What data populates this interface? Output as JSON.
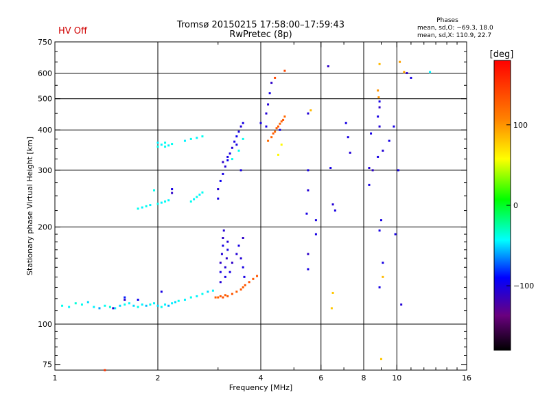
{
  "status": {
    "text": "HV Off",
    "color": "#d00000"
  },
  "title": {
    "line1": "Tromsø 20150215 17:58:00–17:59:43",
    "line2": "RwPretec (8p)"
  },
  "phase_stats": {
    "title": "Phases",
    "o_line": "mean, sd,O: −69.3, 18.0",
    "x_line": "mean, sd,X: 110.9, 22.7"
  },
  "colorbar": {
    "label": "[deg]",
    "min": -180,
    "max": 180,
    "ticks": [
      {
        "value": 100,
        "label": "100"
      },
      {
        "value": 0,
        "label": "0"
      },
      {
        "value": -100,
        "label": "−100"
      }
    ]
  },
  "chart_data": {
    "type": "scatter",
    "title": "Tromsø 20150215 17:58:00–17:59:43",
    "subtitle": "RwPretec (8p)",
    "xlabel": "Frequency [MHz]",
    "ylabel": "Stationary phase Virtual Height [km]",
    "x_scale": "log",
    "y_scale": "log",
    "xlim": [
      1,
      16
    ],
    "ylim": [
      72,
      750
    ],
    "x_ticks": [
      {
        "value": 1,
        "label": "1"
      },
      {
        "value": 2,
        "label": "2"
      },
      {
        "value": 4,
        "label": "4"
      },
      {
        "value": 6,
        "label": "6"
      },
      {
        "value": 8,
        "label": "8"
      },
      {
        "value": 10,
        "label": "10"
      },
      {
        "value": 16,
        "label": "16"
      }
    ],
    "y_ticks": [
      {
        "value": 75,
        "label": "75"
      },
      {
        "value": 100,
        "label": "100"
      },
      {
        "value": 200,
        "label": "200"
      },
      {
        "value": 300,
        "label": "300"
      },
      {
        "value": 400,
        "label": "400"
      },
      {
        "value": 500,
        "label": "500"
      },
      {
        "value": 600,
        "label": "600"
      },
      {
        "value": 750,
        "label": "750"
      }
    ],
    "grid": true,
    "grid_x": [
      2,
      4,
      6,
      8,
      10
    ],
    "grid_y": [
      100,
      200,
      300,
      400,
      500,
      600
    ],
    "color_scale": "phase [deg], -180 to 180",
    "points": [
      [
        1.05,
        114,
        -40
      ],
      [
        1.1,
        113,
        -45
      ],
      [
        1.15,
        116,
        -35
      ],
      [
        1.2,
        115,
        -40
      ],
      [
        1.25,
        117,
        -50
      ],
      [
        1.3,
        113,
        -45
      ],
      [
        1.35,
        112,
        -60
      ],
      [
        1.4,
        114,
        -40
      ],
      [
        1.45,
        113,
        -35
      ],
      [
        1.5,
        112,
        -45
      ],
      [
        1.55,
        114,
        -50
      ],
      [
        1.6,
        115,
        -40
      ],
      [
        1.65,
        116,
        -45
      ],
      [
        1.7,
        114,
        -50
      ],
      [
        1.75,
        113,
        -40
      ],
      [
        1.8,
        115,
        -45
      ],
      [
        1.85,
        114,
        -55
      ],
      [
        1.9,
        115,
        -40
      ],
      [
        1.95,
        116,
        -45
      ],
      [
        2.0,
        114,
        -50
      ],
      [
        2.05,
        113,
        -40
      ],
      [
        2.1,
        115,
        -45
      ],
      [
        2.15,
        114,
        -60
      ],
      [
        2.2,
        116,
        -45
      ],
      [
        2.25,
        117,
        -50
      ],
      [
        2.3,
        118,
        -40
      ],
      [
        2.4,
        119,
        -45
      ],
      [
        2.5,
        121,
        -40
      ],
      [
        2.6,
        122,
        -45
      ],
      [
        2.7,
        124,
        -40
      ],
      [
        2.8,
        126,
        -50
      ],
      [
        2.9,
        127,
        -45
      ],
      [
        1.48,
        112,
        -110
      ],
      [
        1.6,
        119,
        -110
      ],
      [
        1.75,
        119,
        -95
      ],
      [
        1.4,
        72,
        150
      ],
      [
        1.6,
        121,
        -85
      ],
      [
        2.05,
        126,
        -100
      ],
      [
        2.95,
        121,
        130
      ],
      [
        3.0,
        121,
        125
      ],
      [
        3.05,
        122,
        130
      ],
      [
        3.1,
        121,
        135
      ],
      [
        3.15,
        123,
        128
      ],
      [
        3.2,
        122,
        130
      ],
      [
        3.3,
        124,
        132
      ],
      [
        3.4,
        126,
        128
      ],
      [
        3.5,
        128,
        130
      ],
      [
        3.55,
        130,
        128
      ],
      [
        3.6,
        132,
        132
      ],
      [
        3.7,
        135,
        135
      ],
      [
        3.8,
        138,
        130
      ],
      [
        3.9,
        141,
        132
      ],
      [
        3.05,
        135,
        -105
      ],
      [
        3.05,
        145,
        -100
      ],
      [
        3.05,
        155,
        -110
      ],
      [
        3.08,
        165,
        -105
      ],
      [
        3.1,
        175,
        -100
      ],
      [
        3.1,
        185,
        -110
      ],
      [
        3.12,
        195,
        -105
      ],
      [
        3.15,
        140,
        -100
      ],
      [
        3.15,
        150,
        -105
      ],
      [
        3.18,
        160,
        -110
      ],
      [
        3.2,
        170,
        -100
      ],
      [
        3.2,
        180,
        -105
      ],
      [
        3.25,
        145,
        -100
      ],
      [
        3.3,
        155,
        -110
      ],
      [
        3.4,
        165,
        -105
      ],
      [
        3.45,
        175,
        -100
      ],
      [
        3.5,
        160,
        -105
      ],
      [
        3.55,
        150,
        -100
      ],
      [
        3.55,
        185,
        -110
      ],
      [
        3.58,
        140,
        -100
      ],
      [
        3.0,
        245,
        -100
      ],
      [
        3.0,
        262,
        -105
      ],
      [
        3.05,
        278,
        -95
      ],
      [
        3.1,
        292,
        -100
      ],
      [
        3.15,
        308,
        -105
      ],
      [
        3.2,
        322,
        -95
      ],
      [
        3.25,
        338,
        -100
      ],
      [
        3.3,
        352,
        -105
      ],
      [
        3.35,
        368,
        -100
      ],
      [
        3.4,
        382,
        -95
      ],
      [
        3.45,
        395,
        -100
      ],
      [
        3.5,
        410,
        -105
      ],
      [
        3.3,
        325,
        -40
      ],
      [
        3.45,
        345,
        -40
      ],
      [
        3.55,
        375,
        -40
      ],
      [
        3.2,
        330,
        -100
      ],
      [
        3.1,
        318,
        -110
      ],
      [
        3.4,
        360,
        -100
      ],
      [
        3.5,
        300,
        -100
      ],
      [
        3.55,
        420,
        -100
      ],
      [
        2.0,
        355,
        -40
      ],
      [
        2.05,
        360,
        -45
      ],
      [
        2.1,
        365,
        -40
      ],
      [
        2.15,
        358,
        -45
      ],
      [
        2.2,
        362,
        -40
      ],
      [
        2.4,
        370,
        -45
      ],
      [
        2.5,
        375,
        -40
      ],
      [
        2.6,
        378,
        -45
      ],
      [
        2.7,
        382,
        -40
      ],
      [
        2.0,
        365,
        -45
      ],
      [
        2.1,
        355,
        -40
      ],
      [
        1.75,
        228,
        -40
      ],
      [
        1.8,
        230,
        -45
      ],
      [
        1.85,
        232,
        -40
      ],
      [
        1.9,
        234,
        -45
      ],
      [
        2.0,
        236,
        -40
      ],
      [
        2.05,
        238,
        -45
      ],
      [
        2.1,
        240,
        -40
      ],
      [
        2.15,
        242,
        -45
      ],
      [
        2.5,
        240,
        -40
      ],
      [
        2.55,
        244,
        -45
      ],
      [
        2.6,
        248,
        -40
      ],
      [
        2.65,
        252,
        -45
      ],
      [
        2.7,
        256,
        -40
      ],
      [
        2.2,
        255,
        -110
      ],
      [
        2.2,
        262,
        -100
      ],
      [
        1.95,
        260,
        -40
      ],
      [
        4.2,
        370,
        120
      ],
      [
        4.3,
        380,
        125
      ],
      [
        4.35,
        390,
        130
      ],
      [
        4.4,
        395,
        122
      ],
      [
        4.45,
        405,
        128
      ],
      [
        4.5,
        410,
        130
      ],
      [
        4.55,
        418,
        125
      ],
      [
        4.6,
        425,
        128
      ],
      [
        4.65,
        430,
        130
      ],
      [
        4.7,
        440,
        122
      ],
      [
        4.55,
        400,
        -100
      ],
      [
        4.5,
        335,
        60
      ],
      [
        4.6,
        360,
        60
      ],
      [
        4.4,
        580,
        140
      ],
      [
        4.7,
        610,
        140
      ],
      [
        4.15,
        410,
        -100
      ],
      [
        4.2,
        480,
        -105
      ],
      [
        4.25,
        520,
        -100
      ],
      [
        4.3,
        560,
        -110
      ],
      [
        4.0,
        420,
        -100
      ],
      [
        4.15,
        450,
        -105
      ],
      [
        5.5,
        260,
        -105
      ],
      [
        5.5,
        300,
        -100
      ],
      [
        5.5,
        450,
        -105
      ],
      [
        5.45,
        220,
        -100
      ],
      [
        5.5,
        165,
        -110
      ],
      [
        5.5,
        148,
        -100
      ],
      [
        5.6,
        460,
        85
      ],
      [
        5.8,
        210,
        -100
      ],
      [
        5.8,
        190,
        -100
      ],
      [
        6.3,
        630,
        -110
      ],
      [
        6.4,
        305,
        -100
      ],
      [
        6.5,
        235,
        -105
      ],
      [
        6.5,
        125,
        80
      ],
      [
        6.45,
        112,
        80
      ],
      [
        6.6,
        225,
        -100
      ],
      [
        7.2,
        380,
        -100
      ],
      [
        7.3,
        340,
        -105
      ],
      [
        7.1,
        420,
        -100
      ],
      [
        8.3,
        305,
        -105
      ],
      [
        8.4,
        390,
        -100
      ],
      [
        8.5,
        300,
        -110
      ],
      [
        8.8,
        330,
        -100
      ],
      [
        8.9,
        410,
        -105
      ],
      [
        8.8,
        440,
        -100
      ],
      [
        8.9,
        470,
        -110
      ],
      [
        8.9,
        640,
        85
      ],
      [
        9.0,
        210,
        -100
      ],
      [
        8.9,
        195,
        -100
      ],
      [
        9.1,
        155,
        -100
      ],
      [
        9.1,
        140,
        85
      ],
      [
        8.8,
        530,
        100
      ],
      [
        8.85,
        505,
        100
      ],
      [
        8.9,
        490,
        -100
      ],
      [
        8.9,
        130,
        -100
      ],
      [
        9.1,
        345,
        -105
      ],
      [
        9.9,
        190,
        -100
      ],
      [
        10.2,
        650,
        95
      ],
      [
        10.5,
        605,
        95
      ],
      [
        10.7,
        600,
        -110
      ],
      [
        11.0,
        580,
        -100
      ],
      [
        12.5,
        605,
        -45
      ],
      [
        10.3,
        115,
        -105
      ],
      [
        10.1,
        300,
        -100
      ],
      [
        9.5,
        370,
        -100
      ],
      [
        9.8,
        410,
        -100
      ],
      [
        8.3,
        270,
        -100
      ],
      [
        9.0,
        78,
        80
      ]
    ]
  }
}
